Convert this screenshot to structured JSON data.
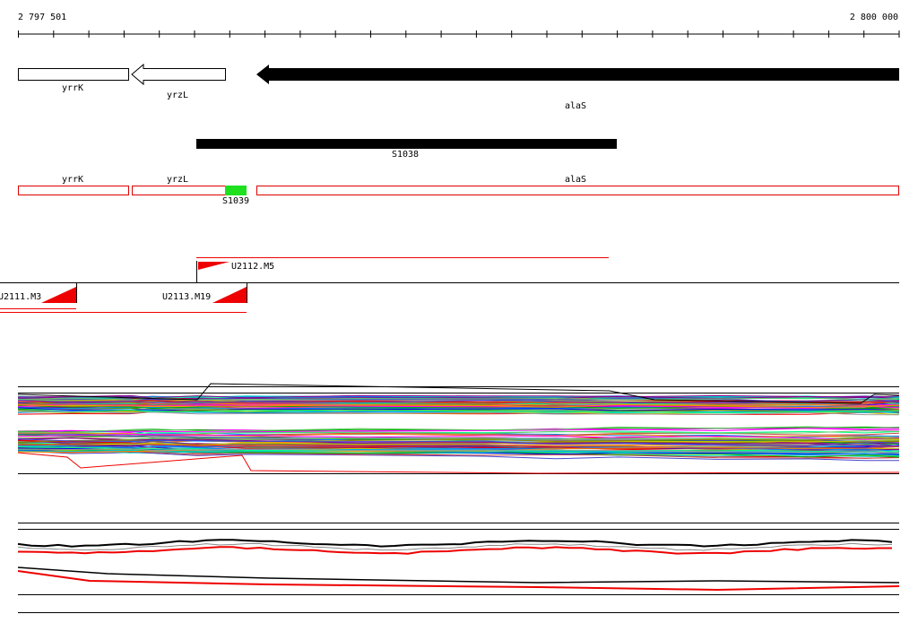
{
  "ruler": {
    "start_label": "2 797 501",
    "end_label": "2 800 000"
  },
  "genes_track": {
    "genes": [
      {
        "label": "yrrK"
      },
      {
        "label": "yrzL"
      },
      {
        "label": "alaS"
      }
    ]
  },
  "segment_track": {
    "label": "S1038"
  },
  "region_track": {
    "regions": [
      {
        "label": "yrrK"
      },
      {
        "label": "yrzL"
      },
      {
        "label": "alaS"
      }
    ],
    "highlight": {
      "label": "S1039"
    }
  },
  "promoters_track": {
    "items": [
      {
        "label": "U2112.M5"
      },
      {
        "label": "U2111.M3"
      },
      {
        "label": "U2113.M19"
      }
    ]
  }
}
